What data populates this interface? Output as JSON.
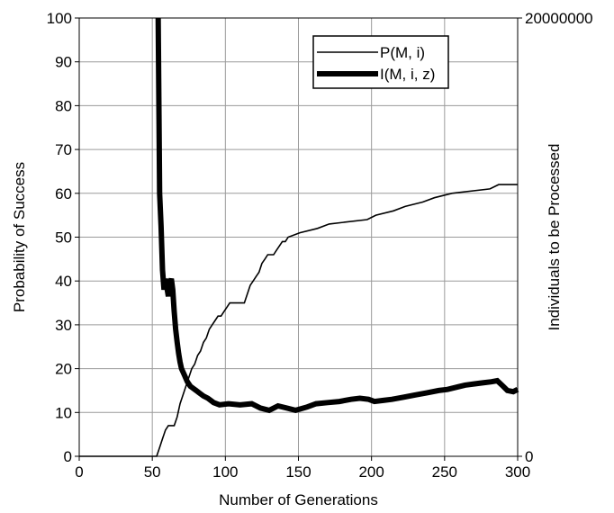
{
  "chart_data": {
    "type": "line",
    "xlabel": "Number of Generations",
    "ylabel_left": "Probability of Success",
    "ylabel_right": "Individuals to be Processed",
    "xlim": [
      0,
      300
    ],
    "ylim_left": [
      0,
      100
    ],
    "ylim_right": [
      0,
      20000000
    ],
    "x_ticks": [
      "0",
      "50",
      "100",
      "150",
      "200",
      "250",
      "300"
    ],
    "y_left_ticks": [
      "0",
      "10",
      "20",
      "30",
      "40",
      "50",
      "60",
      "70",
      "80",
      "90",
      "100"
    ],
    "y_right_ticks": [
      "0",
      "20000000"
    ],
    "grid": true,
    "legend_position": "top-right",
    "series": [
      {
        "name": "P(M, i)",
        "axis": "left",
        "line": "thin",
        "points": [
          [
            0,
            0
          ],
          [
            53,
            0
          ],
          [
            55,
            2
          ],
          [
            57,
            4
          ],
          [
            59,
            6
          ],
          [
            61,
            7
          ],
          [
            65,
            7
          ],
          [
            67,
            9
          ],
          [
            69,
            12
          ],
          [
            71,
            14
          ],
          [
            73,
            16
          ],
          [
            75,
            18
          ],
          [
            77,
            20
          ],
          [
            79,
            21
          ],
          [
            81,
            23
          ],
          [
            83,
            24
          ],
          [
            85,
            26
          ],
          [
            87,
            27
          ],
          [
            89,
            29
          ],
          [
            91,
            30
          ],
          [
            93,
            31
          ],
          [
            95,
            32
          ],
          [
            97,
            32
          ],
          [
            99,
            33
          ],
          [
            101,
            34
          ],
          [
            103,
            35
          ],
          [
            113,
            35
          ],
          [
            115,
            37
          ],
          [
            117,
            39
          ],
          [
            119,
            40
          ],
          [
            121,
            41
          ],
          [
            123,
            42
          ],
          [
            125,
            44
          ],
          [
            127,
            45
          ],
          [
            129,
            46
          ],
          [
            133,
            46
          ],
          [
            135,
            47
          ],
          [
            137,
            48
          ],
          [
            139,
            49
          ],
          [
            141,
            49
          ],
          [
            143,
            50
          ],
          [
            151,
            51
          ],
          [
            163,
            52
          ],
          [
            171,
            53
          ],
          [
            197,
            54
          ],
          [
            203,
            55
          ],
          [
            215,
            56
          ],
          [
            223,
            57
          ],
          [
            235,
            58
          ],
          [
            243,
            59
          ],
          [
            255,
            60
          ],
          [
            281,
            61
          ],
          [
            287,
            62
          ],
          [
            300,
            62
          ]
        ]
      },
      {
        "name": "I(M, i, z)",
        "axis": "right",
        "line": "thick",
        "points": [
          [
            54,
            20000000
          ],
          [
            55,
            12000000
          ],
          [
            56,
            10500000
          ],
          [
            57,
            8500000
          ],
          [
            58,
            7600000
          ],
          [
            59,
            8100000
          ],
          [
            60,
            7700000
          ],
          [
            61,
            7300000
          ],
          [
            62,
            7900000
          ],
          [
            63,
            8100000
          ],
          [
            64,
            7600000
          ],
          [
            65,
            6600000
          ],
          [
            66,
            5800000
          ],
          [
            67,
            5200000
          ],
          [
            68,
            4700000
          ],
          [
            69,
            4300000
          ],
          [
            70,
            4000000
          ],
          [
            72,
            3700000
          ],
          [
            74,
            3400000
          ],
          [
            76,
            3200000
          ],
          [
            78,
            3100000
          ],
          [
            80,
            3000000
          ],
          [
            82,
            2900000
          ],
          [
            85,
            2750000
          ],
          [
            88,
            2650000
          ],
          [
            92,
            2450000
          ],
          [
            96,
            2350000
          ],
          [
            102,
            2400000
          ],
          [
            110,
            2350000
          ],
          [
            118,
            2400000
          ],
          [
            124,
            2200000
          ],
          [
            130,
            2100000
          ],
          [
            136,
            2300000
          ],
          [
            142,
            2200000
          ],
          [
            148,
            2100000
          ],
          [
            156,
            2250000
          ],
          [
            162,
            2400000
          ],
          [
            170,
            2450000
          ],
          [
            178,
            2500000
          ],
          [
            186,
            2600000
          ],
          [
            192,
            2650000
          ],
          [
            198,
            2600000
          ],
          [
            202,
            2500000
          ],
          [
            208,
            2550000
          ],
          [
            214,
            2600000
          ],
          [
            222,
            2700000
          ],
          [
            230,
            2800000
          ],
          [
            238,
            2900000
          ],
          [
            246,
            3000000
          ],
          [
            252,
            3050000
          ],
          [
            258,
            3150000
          ],
          [
            264,
            3250000
          ],
          [
            270,
            3300000
          ],
          [
            276,
            3350000
          ],
          [
            282,
            3400000
          ],
          [
            286,
            3450000
          ],
          [
            290,
            3200000
          ],
          [
            293,
            3000000
          ],
          [
            297,
            2950000
          ],
          [
            300,
            3050000
          ]
        ]
      }
    ]
  }
}
